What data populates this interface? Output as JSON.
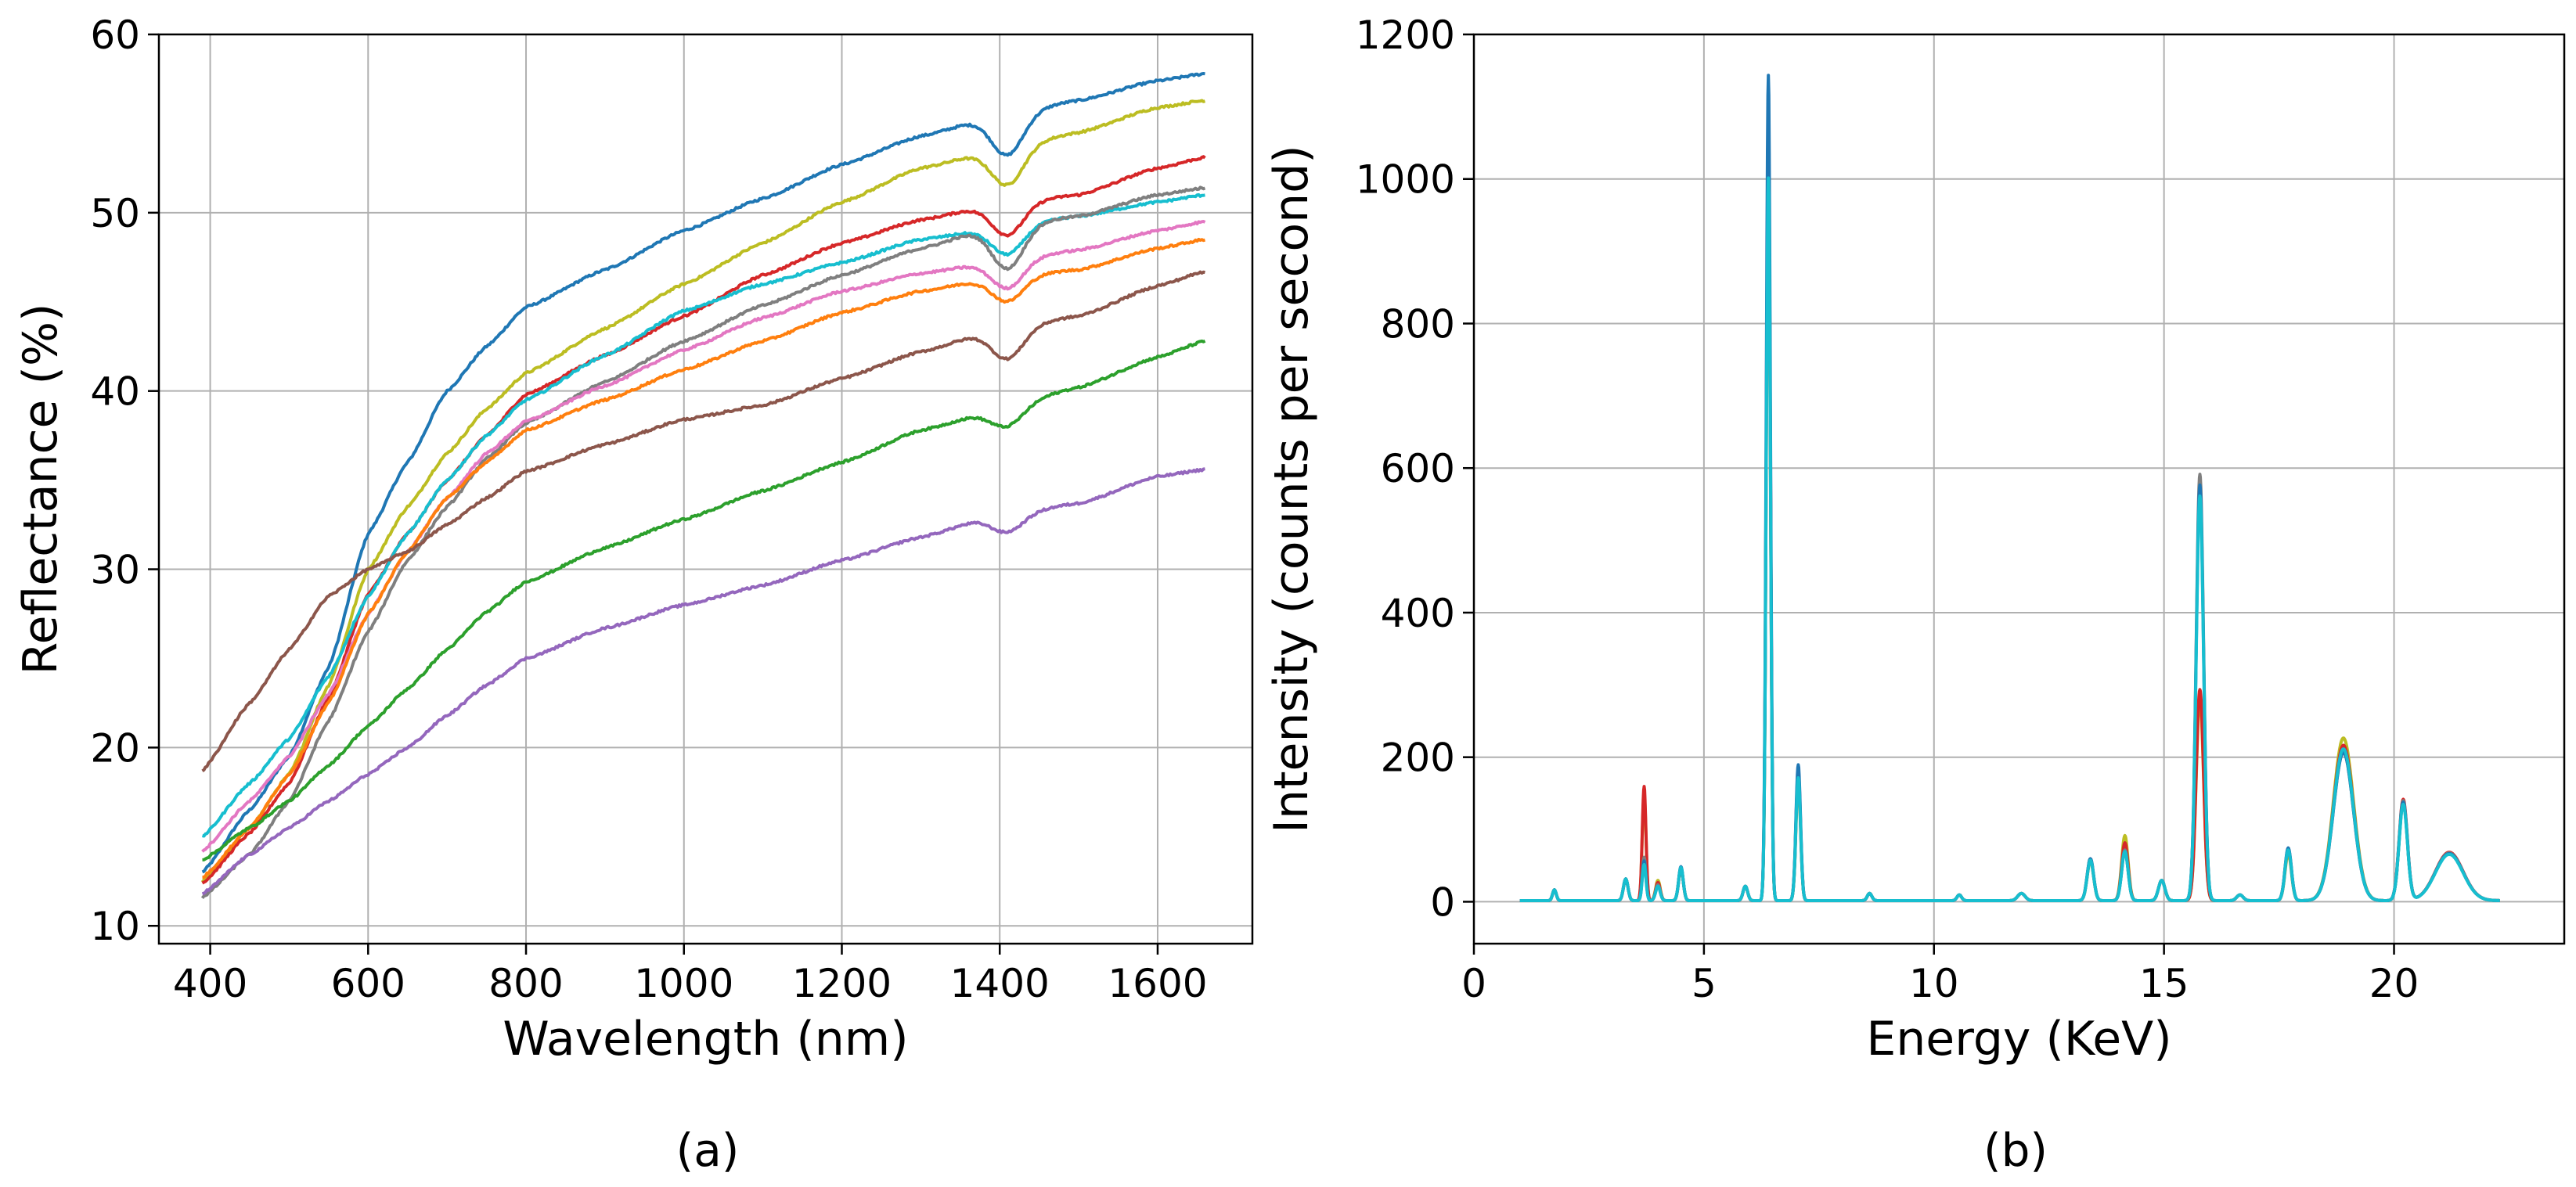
{
  "chart_data": [
    {
      "id": "a",
      "type": "line",
      "panel_label": "(a)",
      "xlabel": "Wavelength (nm)",
      "ylabel": "Reflectance (%)",
      "xlim": [
        335,
        1720
      ],
      "ylim": [
        9,
        60
      ],
      "xticks": [
        400,
        600,
        800,
        1000,
        1200,
        1400,
        1600
      ],
      "yticks": [
        10,
        20,
        30,
        40,
        50,
        60
      ],
      "grid": true,
      "dip": {
        "center": 1410,
        "width": 28
      },
      "series": [
        {
          "name": "blue",
          "color": "#1f77b4",
          "dip_depth": 2.2,
          "x": [
            390,
            450,
            500,
            550,
            600,
            650,
            700,
            750,
            800,
            900,
            1000,
            1100,
            1200,
            1300,
            1380,
            1500,
            1600,
            1660
          ],
          "y": [
            13.0,
            16.5,
            19.5,
            24.5,
            32.0,
            36.0,
            40.0,
            42.5,
            44.7,
            46.8,
            49.0,
            50.8,
            52.7,
            54.3,
            55.2,
            56.3,
            57.4,
            57.8
          ]
        },
        {
          "name": "olive",
          "color": "#bcbd22",
          "dip_depth": 2.0,
          "x": [
            390,
            450,
            500,
            550,
            600,
            650,
            700,
            750,
            800,
            900,
            1000,
            1100,
            1200,
            1300,
            1380,
            1500,
            1600,
            1660
          ],
          "y": [
            12.5,
            15.5,
            18.5,
            23.5,
            30.0,
            33.5,
            36.5,
            39.0,
            41.0,
            43.5,
            46.0,
            48.3,
            50.6,
            52.5,
            53.3,
            54.5,
            55.9,
            56.3
          ]
        },
        {
          "name": "red",
          "color": "#d62728",
          "dip_depth": 1.7,
          "x": [
            390,
            450,
            500,
            550,
            600,
            650,
            700,
            750,
            800,
            900,
            1000,
            1100,
            1200,
            1300,
            1380,
            1500,
            1600,
            1660
          ],
          "y": [
            12.4,
            15.2,
            18.0,
            22.8,
            28.6,
            32.0,
            35.0,
            37.5,
            39.8,
            42.0,
            44.2,
            46.5,
            48.3,
            49.6,
            50.3,
            51.0,
            52.5,
            53.1
          ]
        },
        {
          "name": "cyan",
          "color": "#17becf",
          "dip_depth": 1.5,
          "x": [
            390,
            450,
            500,
            550,
            600,
            650,
            700,
            750,
            800,
            900,
            1000,
            1100,
            1200,
            1300,
            1380,
            1500,
            1600,
            1660
          ],
          "y": [
            15.0,
            18.0,
            20.5,
            24.0,
            28.5,
            32.0,
            35.0,
            37.5,
            39.5,
            42.0,
            44.5,
            46.0,
            47.2,
            48.5,
            49.0,
            49.8,
            50.6,
            51.0
          ]
        },
        {
          "name": "gray",
          "color": "#7f7f7f",
          "dip_depth": 2.3,
          "x": [
            390,
            450,
            500,
            550,
            600,
            650,
            700,
            750,
            800,
            900,
            1000,
            1100,
            1200,
            1300,
            1380,
            1500,
            1600,
            1660
          ],
          "y": [
            11.6,
            14.0,
            17.0,
            21.5,
            26.5,
            30.5,
            33.5,
            36.2,
            38.2,
            40.5,
            42.8,
            44.8,
            46.5,
            48.0,
            49.0,
            49.8,
            51.0,
            51.4
          ]
        },
        {
          "name": "pink",
          "color": "#e377c2",
          "dip_depth": 1.5,
          "x": [
            390,
            450,
            500,
            550,
            600,
            650,
            700,
            750,
            800,
            900,
            1000,
            1100,
            1200,
            1300,
            1380,
            1500,
            1600,
            1660
          ],
          "y": [
            14.2,
            17.0,
            19.5,
            23.0,
            27.5,
            31.0,
            34.0,
            36.5,
            38.3,
            40.3,
            42.3,
            44.1,
            45.6,
            46.6,
            47.1,
            47.9,
            49.0,
            49.5
          ]
        },
        {
          "name": "orange",
          "color": "#ff7f0e",
          "dip_depth": 1.3,
          "x": [
            390,
            450,
            500,
            550,
            600,
            650,
            700,
            750,
            800,
            900,
            1000,
            1100,
            1200,
            1300,
            1380,
            1500,
            1600,
            1660
          ],
          "y": [
            12.7,
            15.5,
            18.5,
            22.5,
            27.5,
            31.0,
            34.0,
            36.0,
            37.8,
            39.5,
            41.2,
            42.8,
            44.4,
            45.6,
            46.2,
            46.8,
            48.0,
            48.5
          ]
        },
        {
          "name": "brown",
          "color": "#8c564b",
          "dip_depth": 1.6,
          "x": [
            390,
            450,
            500,
            550,
            600,
            650,
            700,
            750,
            800,
            900,
            1000,
            1100,
            1200,
            1300,
            1380,
            1500,
            1600,
            1660
          ],
          "y": [
            18.7,
            22.5,
            25.5,
            28.5,
            30.0,
            31.0,
            32.5,
            34.0,
            35.5,
            37.0,
            38.4,
            39.2,
            40.7,
            42.2,
            43.2,
            44.2,
            45.9,
            46.7
          ]
        },
        {
          "name": "green",
          "color": "#2ca02c",
          "dip_depth": 1.0,
          "x": [
            390,
            450,
            500,
            550,
            600,
            650,
            700,
            750,
            800,
            900,
            1000,
            1100,
            1200,
            1300,
            1380,
            1500,
            1600,
            1660
          ],
          "y": [
            13.7,
            15.5,
            17.0,
            19.0,
            21.2,
            23.3,
            25.5,
            27.6,
            29.3,
            31.2,
            32.8,
            34.4,
            36.0,
            37.8,
            38.7,
            40.2,
            41.9,
            42.8
          ]
        },
        {
          "name": "purple",
          "color": "#9467bd",
          "dip_depth": 0.9,
          "x": [
            390,
            450,
            500,
            550,
            600,
            650,
            700,
            750,
            800,
            900,
            1000,
            1100,
            1200,
            1300,
            1380,
            1500,
            1600,
            1660
          ],
          "y": [
            11.8,
            14.0,
            15.5,
            17.0,
            18.5,
            20.0,
            21.8,
            23.5,
            25.0,
            26.7,
            28.0,
            29.1,
            30.5,
            31.8,
            32.8,
            33.7,
            35.2,
            35.6
          ]
        }
      ]
    },
    {
      "id": "b",
      "type": "line",
      "panel_label": "(b)",
      "xlabel": "Energy (KeV)",
      "ylabel": "Intensity (counts per second)",
      "xlim": [
        0,
        23.7
      ],
      "ylim": [
        -58,
        1200
      ],
      "xticks": [
        0,
        5,
        10,
        15,
        20
      ],
      "yticks": [
        0,
        200,
        400,
        600,
        800,
        1000,
        1200
      ],
      "grid": true,
      "energy_range": [
        1.0,
        22.3
      ],
      "series": [
        {
          "name": "yellow",
          "color": "#bcbd22",
          "peaks": [
            [
              1.75,
              15,
              0.04
            ],
            [
              3.3,
              30,
              0.05
            ],
            [
              3.7,
              150,
              0.04
            ],
            [
              4.0,
              28,
              0.05
            ],
            [
              4.5,
              45,
              0.05
            ],
            [
              5.9,
              20,
              0.05
            ],
            [
              6.4,
              1000,
              0.045
            ],
            [
              7.05,
              165,
              0.05
            ],
            [
              8.6,
              10,
              0.05
            ],
            [
              10.55,
              8,
              0.05
            ],
            [
              11.9,
              10,
              0.08
            ],
            [
              13.4,
              55,
              0.07
            ],
            [
              14.15,
              90,
              0.07
            ],
            [
              14.95,
              28,
              0.07
            ],
            [
              15.78,
              280,
              0.08
            ],
            [
              16.65,
              8,
              0.07
            ],
            [
              17.7,
              65,
              0.07
            ],
            [
              18.9,
              225,
              0.22
            ],
            [
              20.2,
              135,
              0.09
            ],
            [
              21.2,
              65,
              0.3
            ]
          ]
        },
        {
          "name": "red",
          "color": "#d62728",
          "peaks": [
            [
              1.75,
              15,
              0.04
            ],
            [
              3.3,
              30,
              0.05
            ],
            [
              3.7,
              158,
              0.04
            ],
            [
              4.0,
              25,
              0.05
            ],
            [
              4.5,
              45,
              0.05
            ],
            [
              5.9,
              20,
              0.05
            ],
            [
              6.4,
              1030,
              0.045
            ],
            [
              7.05,
              175,
              0.05
            ],
            [
              8.6,
              10,
              0.05
            ],
            [
              10.55,
              8,
              0.05
            ],
            [
              11.9,
              10,
              0.08
            ],
            [
              13.4,
              57,
              0.07
            ],
            [
              14.15,
              80,
              0.07
            ],
            [
              14.95,
              28,
              0.07
            ],
            [
              15.78,
              292,
              0.08
            ],
            [
              16.65,
              8,
              0.07
            ],
            [
              17.7,
              70,
              0.07
            ],
            [
              18.9,
              215,
              0.22
            ],
            [
              20.2,
              140,
              0.09
            ],
            [
              21.2,
              67,
              0.3
            ]
          ]
        },
        {
          "name": "gray",
          "color": "#7f7f7f",
          "peaks": [
            [
              1.75,
              15,
              0.04
            ],
            [
              3.3,
              30,
              0.05
            ],
            [
              3.7,
              60,
              0.04
            ],
            [
              4.0,
              22,
              0.05
            ],
            [
              4.5,
              45,
              0.05
            ],
            [
              5.9,
              20,
              0.05
            ],
            [
              6.4,
              1050,
              0.045
            ],
            [
              7.05,
              180,
              0.05
            ],
            [
              8.6,
              10,
              0.05
            ],
            [
              10.55,
              8,
              0.05
            ],
            [
              11.9,
              10,
              0.08
            ],
            [
              13.4,
              58,
              0.07
            ],
            [
              14.15,
              70,
              0.07
            ],
            [
              14.95,
              28,
              0.07
            ],
            [
              15.78,
              590,
              0.08
            ],
            [
              16.65,
              8,
              0.07
            ],
            [
              17.7,
              72,
              0.07
            ],
            [
              18.9,
              205,
              0.22
            ],
            [
              20.2,
              138,
              0.09
            ],
            [
              21.2,
              66,
              0.3
            ]
          ]
        },
        {
          "name": "blue",
          "color": "#1f77b4",
          "peaks": [
            [
              1.75,
              15,
              0.04
            ],
            [
              3.3,
              30,
              0.05
            ],
            [
              3.7,
              55,
              0.04
            ],
            [
              4.0,
              20,
              0.05
            ],
            [
              4.5,
              47,
              0.05
            ],
            [
              5.9,
              20,
              0.05
            ],
            [
              6.4,
              1142,
              0.045
            ],
            [
              7.05,
              188,
              0.05
            ],
            [
              8.6,
              10,
              0.05
            ],
            [
              10.55,
              8,
              0.05
            ],
            [
              11.9,
              10,
              0.08
            ],
            [
              13.4,
              58,
              0.07
            ],
            [
              14.15,
              68,
              0.07
            ],
            [
              14.95,
              28,
              0.07
            ],
            [
              15.78,
              575,
              0.08
            ],
            [
              16.65,
              8,
              0.07
            ],
            [
              17.7,
              73,
              0.07
            ],
            [
              18.9,
              205,
              0.22
            ],
            [
              20.2,
              136,
              0.09
            ],
            [
              21.2,
              65,
              0.3
            ]
          ]
        },
        {
          "name": "cyan",
          "color": "#17becf",
          "peaks": [
            [
              1.75,
              15,
              0.04
            ],
            [
              3.3,
              30,
              0.05
            ],
            [
              3.7,
              50,
              0.04
            ],
            [
              4.0,
              20,
              0.05
            ],
            [
              4.5,
              46,
              0.05
            ],
            [
              5.9,
              20,
              0.05
            ],
            [
              6.4,
              1000,
              0.045
            ],
            [
              7.05,
              170,
              0.05
            ],
            [
              8.6,
              10,
              0.05
            ],
            [
              10.55,
              8,
              0.05
            ],
            [
              11.9,
              10,
              0.08
            ],
            [
              13.4,
              56,
              0.07
            ],
            [
              14.15,
              68,
              0.07
            ],
            [
              14.95,
              28,
              0.07
            ],
            [
              15.78,
              560,
              0.08
            ],
            [
              16.65,
              8,
              0.07
            ],
            [
              17.7,
              70,
              0.07
            ],
            [
              18.9,
              210,
              0.22
            ],
            [
              20.2,
              133,
              0.09
            ],
            [
              21.2,
              64,
              0.3
            ]
          ]
        }
      ]
    }
  ]
}
